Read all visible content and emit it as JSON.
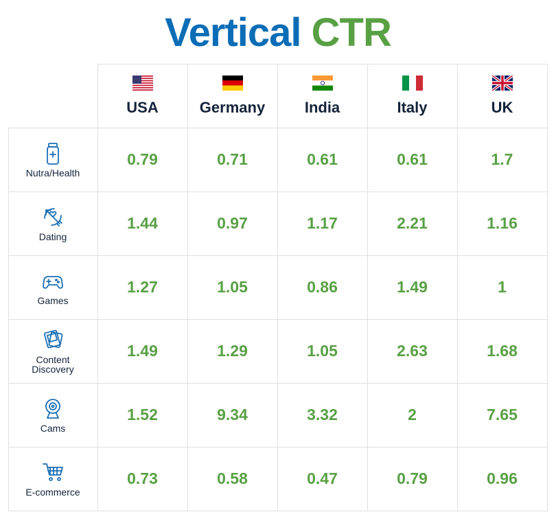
{
  "title": {
    "part1": "Vertical",
    "part2": "CTR"
  },
  "table": {
    "columns": [
      "USA",
      "Germany",
      "India",
      "Italy",
      "UK"
    ],
    "rows": [
      {
        "label": "Nutra/Health",
        "values": [
          0.79,
          0.71,
          0.61,
          0.61,
          1.7
        ]
      },
      {
        "label": "Dating",
        "values": [
          1.44,
          0.97,
          1.17,
          2.21,
          1.16
        ]
      },
      {
        "label": "Games",
        "values": [
          1.27,
          1.05,
          0.86,
          1.49,
          1
        ]
      },
      {
        "label": "Content Discovery",
        "values": [
          1.49,
          1.29,
          1.05,
          2.63,
          1.68
        ]
      },
      {
        "label": "Cams",
        "values": [
          1.52,
          9.34,
          3.32,
          2,
          7.65
        ]
      },
      {
        "label": "E-commerce",
        "values": [
          0.73,
          0.58,
          0.47,
          0.79,
          0.96
        ]
      }
    ]
  }
}
